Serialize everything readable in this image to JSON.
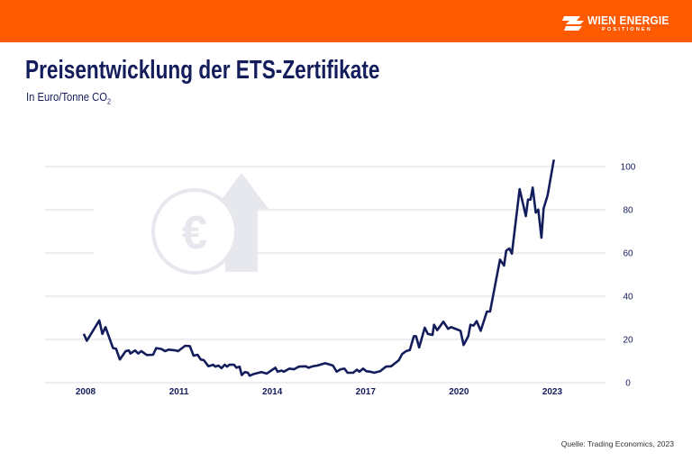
{
  "header": {
    "brand": "WIEN ENERGIE",
    "brand_sub": "POSITIONEN",
    "background_color": "#ff5a00",
    "logo_icon": "wien-energie-flash-logo"
  },
  "title": "Preisentwicklung der ETS-Zertifikate",
  "subtitle": "In Euro/Tonne CO",
  "subtitle_sub": "2",
  "source": "Quelle: Trading Economics, 2023",
  "watermark_icon": "euro-coin-up-arrow-icon",
  "chart_data": {
    "type": "line",
    "title": "Preisentwicklung der ETS-Zertifikate",
    "ylabel": "In Euro/Tonne CO2",
    "xlim": [
      2007.5,
      2025.2
    ],
    "ylim": [
      0,
      100
    ],
    "x_ticks": [
      "2008",
      "2011",
      "2014",
      "2017",
      "2020",
      "2023"
    ],
    "y_ticks": [
      "0",
      "20",
      "40",
      "60",
      "80",
      "100"
    ],
    "y_axis_position": "right",
    "grid": true,
    "line_color": "#141d5c",
    "points": [
      [
        2007.94,
        22.6
      ],
      [
        2008.04,
        19.4
      ],
      [
        2008.44,
        28.8
      ],
      [
        2008.54,
        22.6
      ],
      [
        2008.64,
        25.7
      ],
      [
        2008.88,
        16
      ],
      [
        2008.98,
        15.7
      ],
      [
        2009.1,
        10.7
      ],
      [
        2009.29,
        14.6
      ],
      [
        2009.39,
        14.9
      ],
      [
        2009.44,
        13.5
      ],
      [
        2009.59,
        14.9
      ],
      [
        2009.69,
        13.5
      ],
      [
        2009.79,
        14.6
      ],
      [
        2009.97,
        12.8
      ],
      [
        2010.17,
        12.9
      ],
      [
        2010.27,
        16
      ],
      [
        2010.44,
        15.6
      ],
      [
        2010.55,
        14.6
      ],
      [
        2010.67,
        15.3
      ],
      [
        2010.9,
        14.9
      ],
      [
        2010.97,
        14.6
      ],
      [
        2011.2,
        17.1
      ],
      [
        2011.35,
        16.9
      ],
      [
        2011.47,
        12.5
      ],
      [
        2011.6,
        12.9
      ],
      [
        2011.7,
        10.7
      ],
      [
        2011.8,
        10.4
      ],
      [
        2011.95,
        7.6
      ],
      [
        2012.1,
        8.3
      ],
      [
        2012.17,
        7.4
      ],
      [
        2012.27,
        7.9
      ],
      [
        2012.37,
        6.7
      ],
      [
        2012.47,
        8.3
      ],
      [
        2012.55,
        7.4
      ],
      [
        2012.62,
        8.3
      ],
      [
        2012.77,
        8.3
      ],
      [
        2012.85,
        6.9
      ],
      [
        2012.95,
        7.4
      ],
      [
        2013.02,
        3.5
      ],
      [
        2013.12,
        4.9
      ],
      [
        2013.22,
        4.6
      ],
      [
        2013.27,
        3.2
      ],
      [
        2013.4,
        4
      ],
      [
        2013.65,
        4.9
      ],
      [
        2013.82,
        4.2
      ],
      [
        2014.1,
        6.9
      ],
      [
        2014.17,
        5.1
      ],
      [
        2014.3,
        5.6
      ],
      [
        2014.37,
        5.1
      ],
      [
        2014.55,
        6.5
      ],
      [
        2014.7,
        6.2
      ],
      [
        2014.85,
        7.4
      ],
      [
        2015.07,
        7.6
      ],
      [
        2015.17,
        6.9
      ],
      [
        2015.3,
        7.6
      ],
      [
        2015.45,
        7.9
      ],
      [
        2015.7,
        9
      ],
      [
        2015.95,
        7.9
      ],
      [
        2016.07,
        5.1
      ],
      [
        2016.2,
        6.2
      ],
      [
        2016.32,
        6.5
      ],
      [
        2016.42,
        4.6
      ],
      [
        2016.6,
        4.6
      ],
      [
        2016.72,
        6
      ],
      [
        2016.8,
        5.1
      ],
      [
        2016.92,
        6.5
      ],
      [
        2017.02,
        5.3
      ],
      [
        2017.15,
        5.1
      ],
      [
        2017.27,
        4.6
      ],
      [
        2017.47,
        5.3
      ],
      [
        2017.65,
        7.4
      ],
      [
        2017.82,
        7.6
      ],
      [
        2018.07,
        10.4
      ],
      [
        2018.17,
        13.2
      ],
      [
        2018.3,
        14.6
      ],
      [
        2018.42,
        15.1
      ],
      [
        2018.55,
        21.5
      ],
      [
        2018.62,
        21.5
      ],
      [
        2018.72,
        16.3
      ],
      [
        2018.9,
        25.4
      ],
      [
        2019.0,
        22.6
      ],
      [
        2019.15,
        22.1
      ],
      [
        2019.2,
        26.8
      ],
      [
        2019.3,
        24.3
      ],
      [
        2019.5,
        28.2
      ],
      [
        2019.65,
        24.9
      ],
      [
        2019.75,
        25.7
      ],
      [
        2020.05,
        24
      ],
      [
        2020.15,
        17.4
      ],
      [
        2020.3,
        21.5
      ],
      [
        2020.37,
        26.8
      ],
      [
        2020.47,
        26.4
      ],
      [
        2020.57,
        28.5
      ],
      [
        2020.7,
        24
      ],
      [
        2020.9,
        32.9
      ],
      [
        2021.0,
        32.9
      ],
      [
        2021.32,
        56.9
      ],
      [
        2021.45,
        54.2
      ],
      [
        2021.52,
        61.1
      ],
      [
        2021.62,
        62.1
      ],
      [
        2021.7,
        59.7
      ],
      [
        2021.95,
        89.6
      ],
      [
        2022.15,
        77.1
      ],
      [
        2022.22,
        84.7
      ],
      [
        2022.3,
        84.7
      ],
      [
        2022.37,
        90.3
      ],
      [
        2022.47,
        78.7
      ],
      [
        2022.55,
        80.1
      ],
      [
        2022.65,
        67.1
      ],
      [
        2022.72,
        80.6
      ],
      [
        2022.85,
        86.8
      ],
      [
        2023.05,
        103.2
      ]
    ]
  }
}
